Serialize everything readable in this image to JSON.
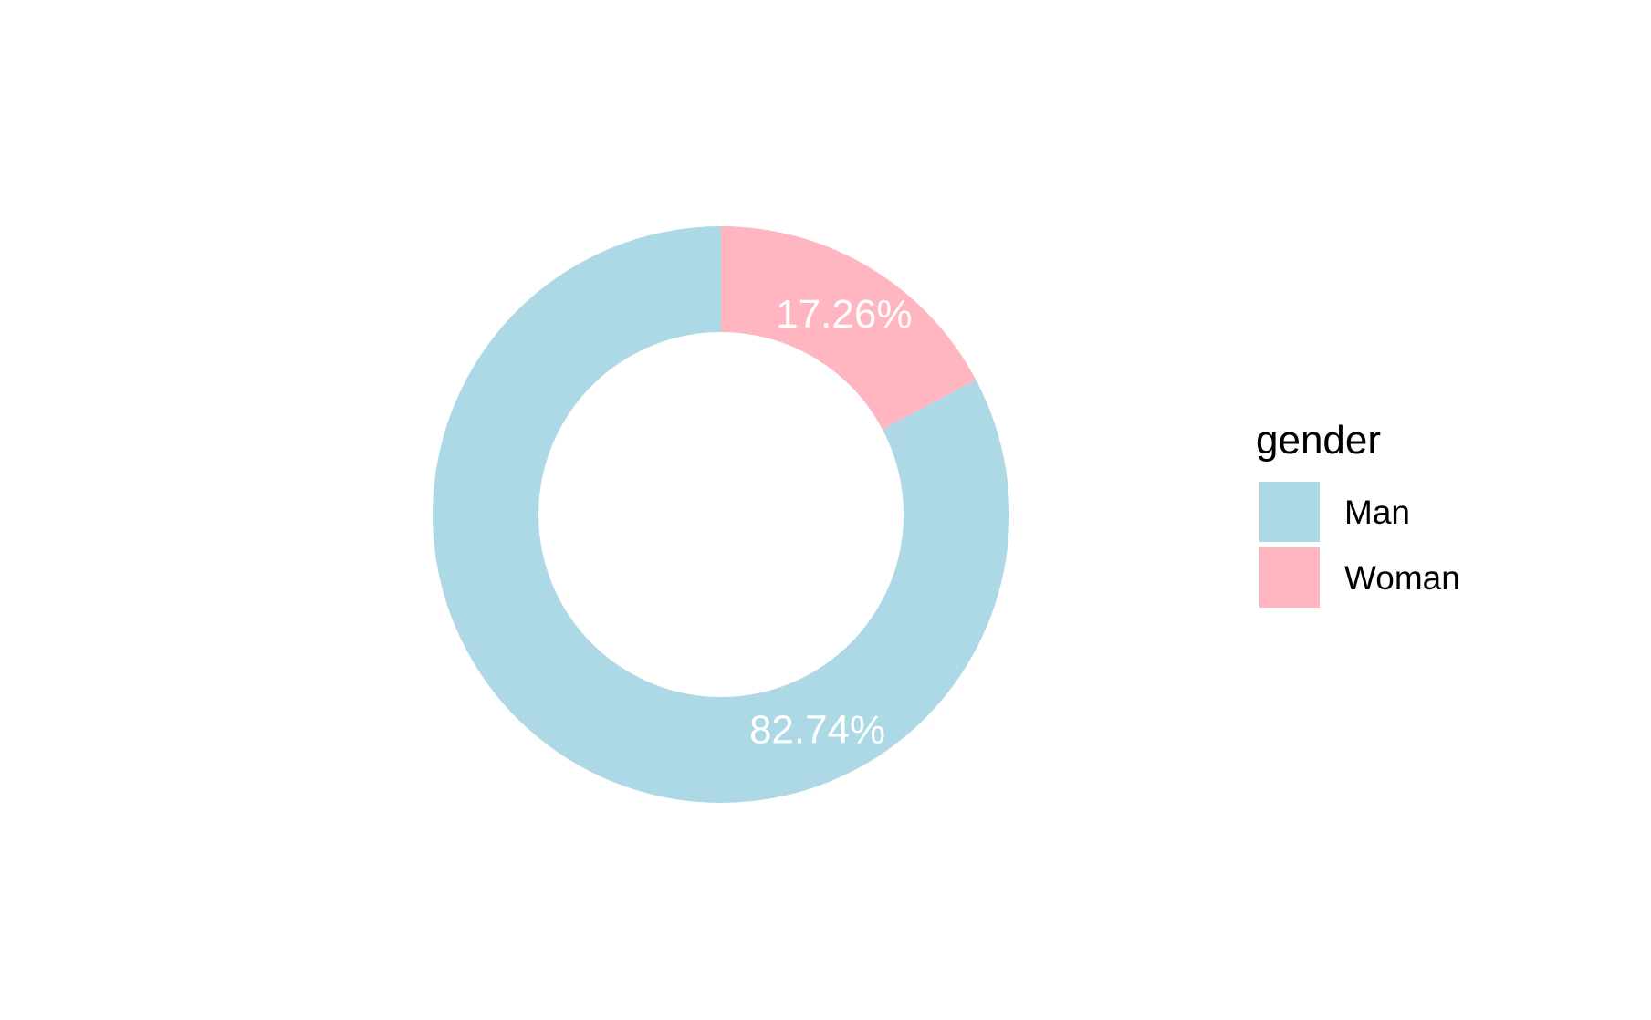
{
  "chart_data": {
    "type": "pie",
    "variant": "donut",
    "title": "",
    "legend": {
      "title": "gender",
      "position": "right"
    },
    "categories": [
      "Man",
      "Woman"
    ],
    "values": [
      82.74,
      17.26
    ],
    "value_labels": [
      "82.74%",
      "17.26%"
    ],
    "colors": [
      "#ADD8E6",
      "#FFB6C1"
    ],
    "label_color": "#ffffff",
    "start": "top",
    "direction": "counterclockwise",
    "grid": false
  }
}
